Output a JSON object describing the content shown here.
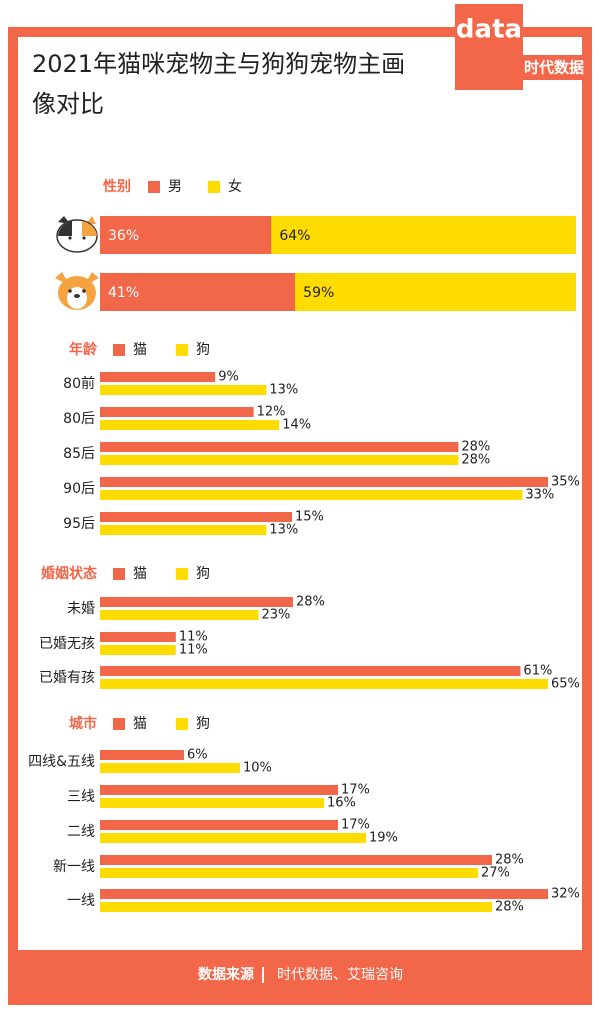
{
  "logo": {
    "mark": "data",
    "name": "时代数据"
  },
  "chart_data": [
    {
      "type": "stacked_bar",
      "title": "2021年猫咪宠物主与狗狗宠物主画像对比",
      "legend_title": "性别",
      "categories": [
        null,
        null
      ],
      "xlim": [
        0,
        100
      ],
      "series": [
        {
          "name": "男",
          "color": "#f26649",
          "values": [
            36,
            41
          ],
          "value_labels": [
            "36%",
            "41%"
          ]
        },
        {
          "name": "女",
          "color": "#ffdc00",
          "values": [
            64,
            59
          ],
          "value_labels": [
            "64%",
            "59%"
          ]
        }
      ]
    },
    {
      "type": "bar",
      "legend_title": "年龄",
      "categories": [
        "80前",
        "80后",
        "85后",
        "90后",
        "95后"
      ],
      "xlim": [
        0,
        35
      ],
      "series": [
        {
          "name": "猫",
          "color": "#f26649",
          "values": [
            9,
            12,
            28,
            35,
            15
          ],
          "value_labels": [
            "9%",
            "12%",
            "28%",
            "35%",
            "15%"
          ]
        },
        {
          "name": "狗",
          "color": "#ffdc00",
          "values": [
            13,
            14,
            28,
            33,
            13
          ],
          "value_labels": [
            "13%",
            "14%",
            "28%",
            "33%",
            "13%"
          ]
        }
      ]
    },
    {
      "type": "bar",
      "legend_title": "婚姻状态",
      "categories": [
        "未婚",
        "已婚无孩",
        "已婚有孩"
      ],
      "xlim": [
        0,
        65
      ],
      "series": [
        {
          "name": "猫",
          "color": "#f26649",
          "values": [
            28,
            11,
            61
          ],
          "value_labels": [
            "28%",
            "11%",
            "61%"
          ]
        },
        {
          "name": "狗",
          "color": "#ffdc00",
          "values": [
            23,
            11,
            65
          ],
          "value_labels": [
            "23%",
            "11%",
            "65%"
          ]
        }
      ]
    },
    {
      "type": "bar",
      "legend_title": "城市",
      "categories": [
        "四线&五线",
        "三线",
        "二线",
        "新一线",
        "一线"
      ],
      "xlim": [
        0,
        32
      ],
      "series": [
        {
          "name": "猫",
          "color": "#f26649",
          "values": [
            6,
            17,
            17,
            28,
            32
          ],
          "value_labels": [
            "6%",
            "17%",
            "17%",
            "28%",
            "32%"
          ]
        },
        {
          "name": "狗",
          "color": "#ffdc00",
          "values": [
            10,
            16,
            19,
            27,
            28
          ],
          "value_labels": [
            "10%",
            "16%",
            "19%",
            "27%",
            "28%"
          ]
        }
      ]
    }
  ],
  "source": {
    "label": "数据来源",
    "text": "时代数据、艾瑞咨询"
  }
}
